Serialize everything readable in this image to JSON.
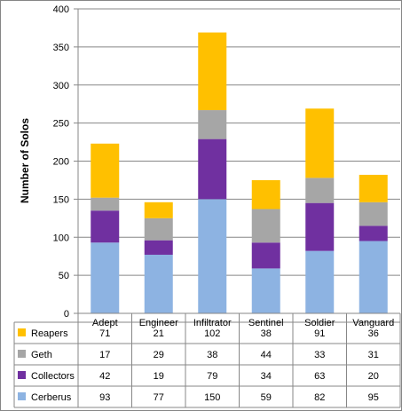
{
  "chart_data": {
    "type": "bar",
    "stacked": true,
    "categories": [
      "Adept",
      "Engineer",
      "Infiltrator",
      "Sentinel",
      "Soldier",
      "Vanguard"
    ],
    "series": [
      {
        "name": "Cerberus",
        "values": [
          93,
          77,
          150,
          59,
          82,
          95
        ],
        "color": "#8DB3E2"
      },
      {
        "name": "Collectors",
        "values": [
          42,
          19,
          79,
          34,
          63,
          20
        ],
        "color": "#7030A0"
      },
      {
        "name": "Geth",
        "values": [
          17,
          29,
          38,
          44,
          33,
          31
        ],
        "color": "#A6A6A6"
      },
      {
        "name": "Reapers",
        "values": [
          71,
          21,
          102,
          38,
          91,
          36
        ],
        "color": "#FFC000"
      }
    ],
    "ylabel": "Number of Solos",
    "ylim": [
      0,
      400
    ],
    "yticks": [
      0,
      50,
      100,
      150,
      200,
      250,
      300,
      350,
      400
    ],
    "grid": true,
    "legend": "data-table",
    "table_row_order": [
      "Reapers",
      "Geth",
      "Collectors",
      "Cerberus"
    ]
  }
}
